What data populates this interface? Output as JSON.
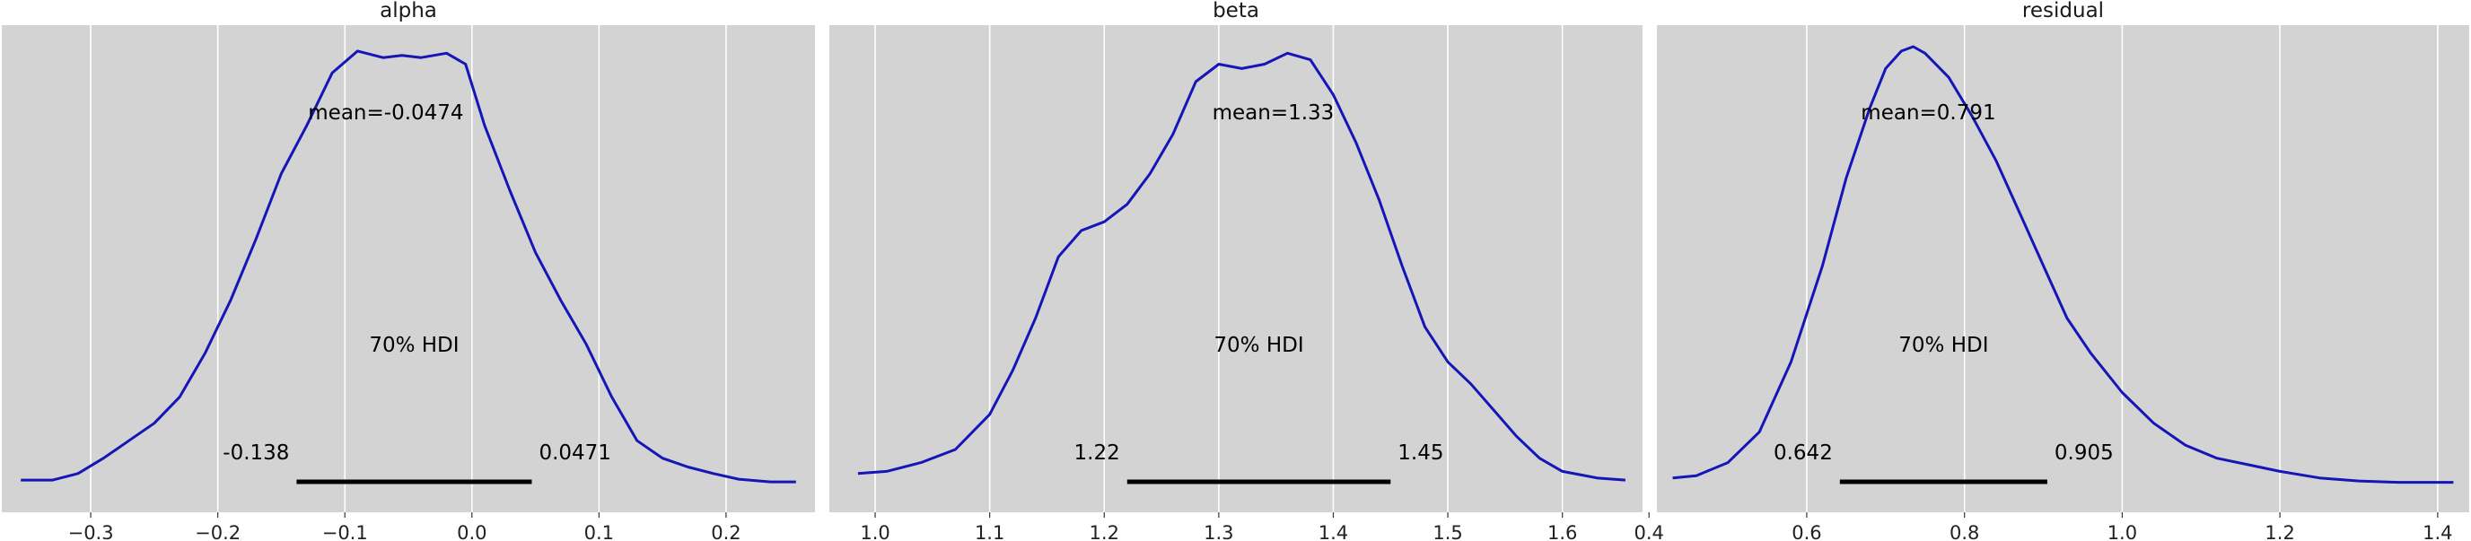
{
  "chart_data": [
    {
      "type": "area",
      "title": "alpha",
      "xlim": [
        -0.37,
        0.27
      ],
      "ylim": [
        0,
        1.0
      ],
      "xticks": [
        -0.3,
        -0.2,
        -0.1,
        0.0,
        0.1,
        0.2
      ],
      "xtick_labels": [
        "−0.3",
        "−0.2",
        "−0.1",
        "0.0",
        "0.1",
        "0.2"
      ],
      "grid": true,
      "line_color": "#1515b8",
      "density": {
        "x": [
          -0.355,
          -0.33,
          -0.31,
          -0.29,
          -0.27,
          -0.25,
          -0.23,
          -0.21,
          -0.19,
          -0.17,
          -0.15,
          -0.13,
          -0.11,
          -0.09,
          -0.07,
          -0.055,
          -0.04,
          -0.02,
          -0.005,
          0.01,
          0.03,
          0.05,
          0.07,
          0.09,
          0.11,
          0.13,
          0.15,
          0.17,
          0.19,
          0.21,
          0.235,
          0.255
        ],
        "y": [
          0.01,
          0.01,
          0.025,
          0.06,
          0.1,
          0.14,
          0.2,
          0.3,
          0.42,
          0.56,
          0.71,
          0.82,
          0.94,
          0.99,
          0.975,
          0.98,
          0.975,
          0.985,
          0.96,
          0.82,
          0.67,
          0.53,
          0.42,
          0.32,
          0.2,
          0.1,
          0.06,
          0.04,
          0.025,
          0.012,
          0.006,
          0.006
        ]
      },
      "mean_label": "mean=-0.0474",
      "hdi_label": "70% HDI",
      "hdi": [
        -0.138,
        0.0471
      ],
      "hdi_labels": [
        "-0.138",
        "0.0471"
      ]
    },
    {
      "type": "area",
      "title": "beta",
      "xlim": [
        0.96,
        1.67
      ],
      "ylim": [
        0,
        1.0
      ],
      "xticks": [
        1.0,
        1.1,
        1.2,
        1.3,
        1.4,
        1.5,
        1.6
      ],
      "xtick_labels": [
        "1.0",
        "1.1",
        "1.2",
        "1.3",
        "1.4",
        "1.5",
        "1.6"
      ],
      "grid": true,
      "line_color": "#1515b8",
      "density": {
        "x": [
          0.985,
          1.01,
          1.04,
          1.07,
          1.1,
          1.12,
          1.14,
          1.16,
          1.18,
          1.2,
          1.22,
          1.24,
          1.26,
          1.28,
          1.3,
          1.32,
          1.34,
          1.36,
          1.38,
          1.4,
          1.42,
          1.44,
          1.46,
          1.48,
          1.5,
          1.52,
          1.54,
          1.56,
          1.58,
          1.6,
          1.63,
          1.655
        ],
        "y": [
          0.025,
          0.03,
          0.05,
          0.08,
          0.16,
          0.26,
          0.38,
          0.52,
          0.58,
          0.6,
          0.64,
          0.71,
          0.8,
          0.92,
          0.96,
          0.95,
          0.96,
          0.985,
          0.97,
          0.89,
          0.78,
          0.65,
          0.5,
          0.36,
          0.28,
          0.23,
          0.17,
          0.11,
          0.06,
          0.03,
          0.015,
          0.01
        ]
      },
      "mean_label": "mean=1.33",
      "hdi_label": "70% HDI",
      "hdi": [
        1.22,
        1.45
      ],
      "hdi_labels": [
        "1.22",
        "1.45"
      ]
    },
    {
      "type": "area",
      "title": "residual",
      "xlim": [
        0.41,
        1.44
      ],
      "ylim": [
        0,
        1.0
      ],
      "xticks": [
        0.4,
        0.6,
        0.8,
        1.0,
        1.2,
        1.4
      ],
      "xtick_labels": [
        "0.4",
        "0.6",
        "0.8",
        "1.0",
        "1.2",
        "1.4"
      ],
      "grid": true,
      "line_color": "#1515b8",
      "density": {
        "x": [
          0.43,
          0.46,
          0.5,
          0.54,
          0.58,
          0.62,
          0.65,
          0.68,
          0.7,
          0.72,
          0.735,
          0.75,
          0.78,
          0.81,
          0.84,
          0.87,
          0.9,
          0.93,
          0.96,
          1.0,
          1.04,
          1.08,
          1.12,
          1.16,
          1.2,
          1.25,
          1.3,
          1.35,
          1.42
        ],
        "y": [
          0.015,
          0.02,
          0.05,
          0.12,
          0.28,
          0.5,
          0.7,
          0.86,
          0.95,
          0.99,
          1.0,
          0.985,
          0.93,
          0.84,
          0.74,
          0.62,
          0.5,
          0.38,
          0.3,
          0.21,
          0.14,
          0.09,
          0.06,
          0.045,
          0.03,
          0.015,
          0.008,
          0.005,
          0.005
        ]
      },
      "mean_label": "mean=0.791",
      "hdi_label": "70% HDI",
      "hdi": [
        0.642,
        0.905
      ],
      "hdi_labels": [
        "0.642",
        "0.905"
      ]
    }
  ]
}
